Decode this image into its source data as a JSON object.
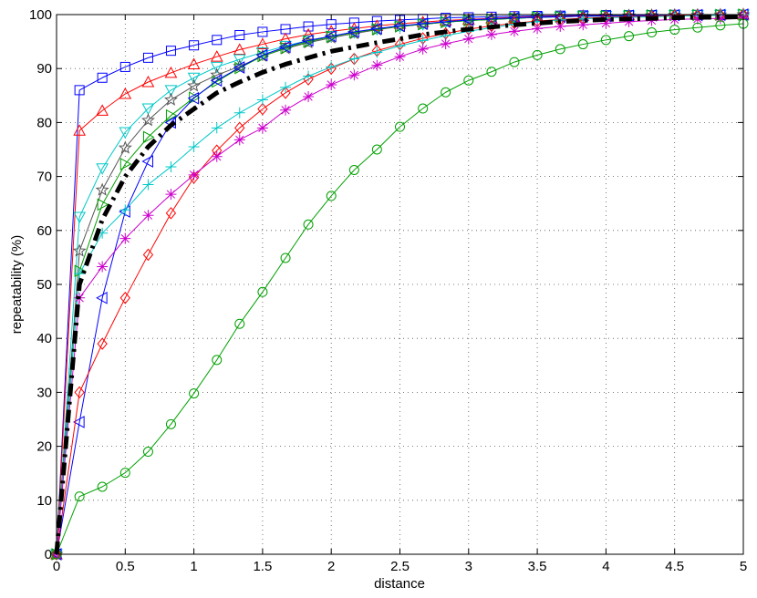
{
  "chart_data": {
    "type": "line",
    "title": "",
    "xlabel": "distance",
    "ylabel": "repeatability (%)",
    "xlim": [
      0,
      5
    ],
    "ylim": [
      0,
      100
    ],
    "xticks": [
      0,
      0.5,
      1,
      1.5,
      2,
      2.5,
      3,
      3.5,
      4,
      4.5,
      5
    ],
    "yticks": [
      0,
      10,
      20,
      30,
      40,
      50,
      60,
      70,
      80,
      90,
      100
    ],
    "xtick_labels": [
      "0",
      "0.5",
      "1",
      "1.5",
      "2",
      "2.5",
      "3",
      "3.5",
      "4",
      "4.5",
      "5"
    ],
    "ytick_labels": [
      "0",
      "10",
      "20",
      "30",
      "40",
      "50",
      "60",
      "70",
      "80",
      "90",
      "100"
    ],
    "grid": true,
    "grid_style": "dotted",
    "legend": "none",
    "x": [
      0,
      0.167,
      0.333,
      0.5,
      0.667,
      0.833,
      1.0,
      1.167,
      1.333,
      1.5,
      1.667,
      1.833,
      2.0,
      2.167,
      2.333,
      2.5,
      2.667,
      2.833,
      3.0,
      3.167,
      3.333,
      3.5,
      3.667,
      3.833,
      4.0,
      4.167,
      4.333,
      4.5,
      4.667,
      4.833,
      5.0
    ],
    "series": [
      {
        "color": "#0000ff",
        "marker": "square",
        "linestyle": "solid",
        "values": [
          0,
          86,
          88.3,
          90.3,
          92,
          93.3,
          94.3,
          95.3,
          96.2,
          96.8,
          97.3,
          97.8,
          98.2,
          98.5,
          98.8,
          99,
          99.2,
          99.4,
          99.5,
          99.6,
          99.7,
          99.75,
          99.8,
          99.85,
          99.9,
          99.9,
          99.92,
          99.95,
          99.95,
          99.97,
          100
        ]
      },
      {
        "color": "#ff0000",
        "marker": "triangle-up",
        "linestyle": "solid",
        "values": [
          0,
          78.5,
          82.2,
          85.3,
          87.5,
          89.2,
          90.8,
          92.2,
          93.5,
          94.5,
          95.5,
          96.3,
          96.9,
          97.4,
          97.9,
          98.3,
          98.6,
          98.9,
          99.1,
          99.3,
          99.5,
          99.6,
          99.7,
          99.75,
          99.8,
          99.85,
          99.9,
          99.92,
          99.95,
          99.97,
          100
        ]
      },
      {
        "color": "#00c8c8",
        "marker": "triangle-down",
        "linestyle": "solid",
        "values": [
          0,
          62.5,
          71.5,
          78.2,
          82.6,
          86.0,
          88.3,
          90.3,
          91.7,
          93.0,
          94.2,
          95.2,
          96.0,
          96.7,
          97.3,
          97.8,
          98.2,
          98.6,
          98.9,
          99.1,
          99.3,
          99.5,
          99.6,
          99.7,
          99.75,
          99.8,
          99.85,
          99.9,
          99.92,
          99.95,
          100
        ]
      },
      {
        "color": "#555555",
        "marker": "star",
        "linestyle": "solid",
        "values": [
          0,
          56.2,
          67.5,
          75.3,
          80.4,
          84.2,
          86.8,
          88.8,
          90.4,
          92.3,
          93.7,
          94.8,
          95.7,
          96.5,
          97.2,
          97.8,
          98.2,
          98.6,
          98.9,
          99.1,
          99.3,
          99.5,
          99.6,
          99.7,
          99.75,
          99.8,
          99.85,
          99.9,
          99.92,
          99.95,
          100
        ]
      },
      {
        "color": "#00a000",
        "marker": "triangle-right",
        "linestyle": "solid",
        "values": [
          0,
          52.5,
          64.8,
          72.3,
          77.3,
          81.3,
          84.6,
          87.6,
          90.1,
          92.3,
          93.8,
          95.0,
          95.9,
          96.7,
          97.3,
          97.8,
          98.2,
          98.6,
          98.9,
          99.1,
          99.3,
          99.5,
          99.6,
          99.7,
          99.75,
          99.8,
          99.85,
          99.9,
          99.92,
          99.95,
          100
        ]
      },
      {
        "color": "#0000ff",
        "marker": "triangle-left",
        "linestyle": "solid",
        "values": [
          0,
          24.5,
          47.5,
          63.5,
          72.8,
          80.0,
          84.5,
          87.8,
          90.2,
          92.5,
          94.0,
          95.2,
          96.0,
          96.8,
          97.4,
          97.9,
          98.3,
          98.7,
          99.0,
          99.2,
          99.4,
          99.5,
          99.6,
          99.7,
          99.75,
          99.8,
          99.85,
          99.9,
          99.92,
          99.95,
          100
        ]
      },
      {
        "color": "#ff0000",
        "marker": "diamond",
        "linestyle": "solid",
        "values": [
          0,
          30,
          39,
          47.5,
          55.5,
          63.2,
          69.8,
          74.8,
          79.0,
          82.5,
          85.5,
          88.0,
          90.0,
          91.8,
          93.3,
          94.5,
          95.6,
          96.5,
          97.3,
          97.9,
          98.4,
          98.8,
          99.1,
          99.3,
          99.5,
          99.6,
          99.7,
          99.8,
          99.85,
          99.9,
          100
        ]
      },
      {
        "color": "#00c8c8",
        "marker": "plus",
        "linestyle": "solid",
        "values": [
          0,
          52,
          59.5,
          63.8,
          68.5,
          71.8,
          75.5,
          79.0,
          81.8,
          84.2,
          86.5,
          88.6,
          90.3,
          91.8,
          93.0,
          94.2,
          95.2,
          96.1,
          96.9,
          97.6,
          98.2,
          98.7,
          99.0,
          99.2,
          99.4,
          99.5,
          99.6,
          99.7,
          99.8,
          99.9,
          100
        ]
      },
      {
        "color": "#cc00cc",
        "marker": "asterisk",
        "linestyle": "solid",
        "values": [
          0,
          47.5,
          53.3,
          58.5,
          62.8,
          66.7,
          70.3,
          73.7,
          76.8,
          79.0,
          82.3,
          84.8,
          87.0,
          88.8,
          90.6,
          92.2,
          93.6,
          94.6,
          95.5,
          96.3,
          96.9,
          97.4,
          97.8,
          98.1,
          98.4,
          98.7,
          98.9,
          99.1,
          99.2,
          99.3,
          99.5
        ]
      },
      {
        "color": "#00a000",
        "marker": "circle",
        "linestyle": "solid",
        "values": [
          0,
          10.7,
          12.5,
          15.1,
          19.0,
          24.1,
          29.8,
          36.0,
          42.7,
          48.6,
          54.9,
          61.1,
          66.4,
          71.2,
          75.0,
          79.2,
          82.6,
          85.6,
          87.8,
          89.4,
          91.2,
          92.5,
          93.6,
          94.5,
          95.3,
          96.0,
          96.7,
          97.2,
          97.6,
          98.0,
          98.3
        ]
      },
      {
        "color": "#000000",
        "marker": "none",
        "linestyle": "dashdot",
        "emphasis": true,
        "values": [
          0,
          50,
          62,
          70,
          75.5,
          79.5,
          82.5,
          85.5,
          87.5,
          89.3,
          90.8,
          92.0,
          93.2,
          94.0,
          94.8,
          95.5,
          96.3,
          96.8,
          97.3,
          97.7,
          98.1,
          98.4,
          98.7,
          98.9,
          99.1,
          99.2,
          99.3,
          99.4,
          99.5,
          99.5,
          99.6
        ]
      }
    ]
  }
}
